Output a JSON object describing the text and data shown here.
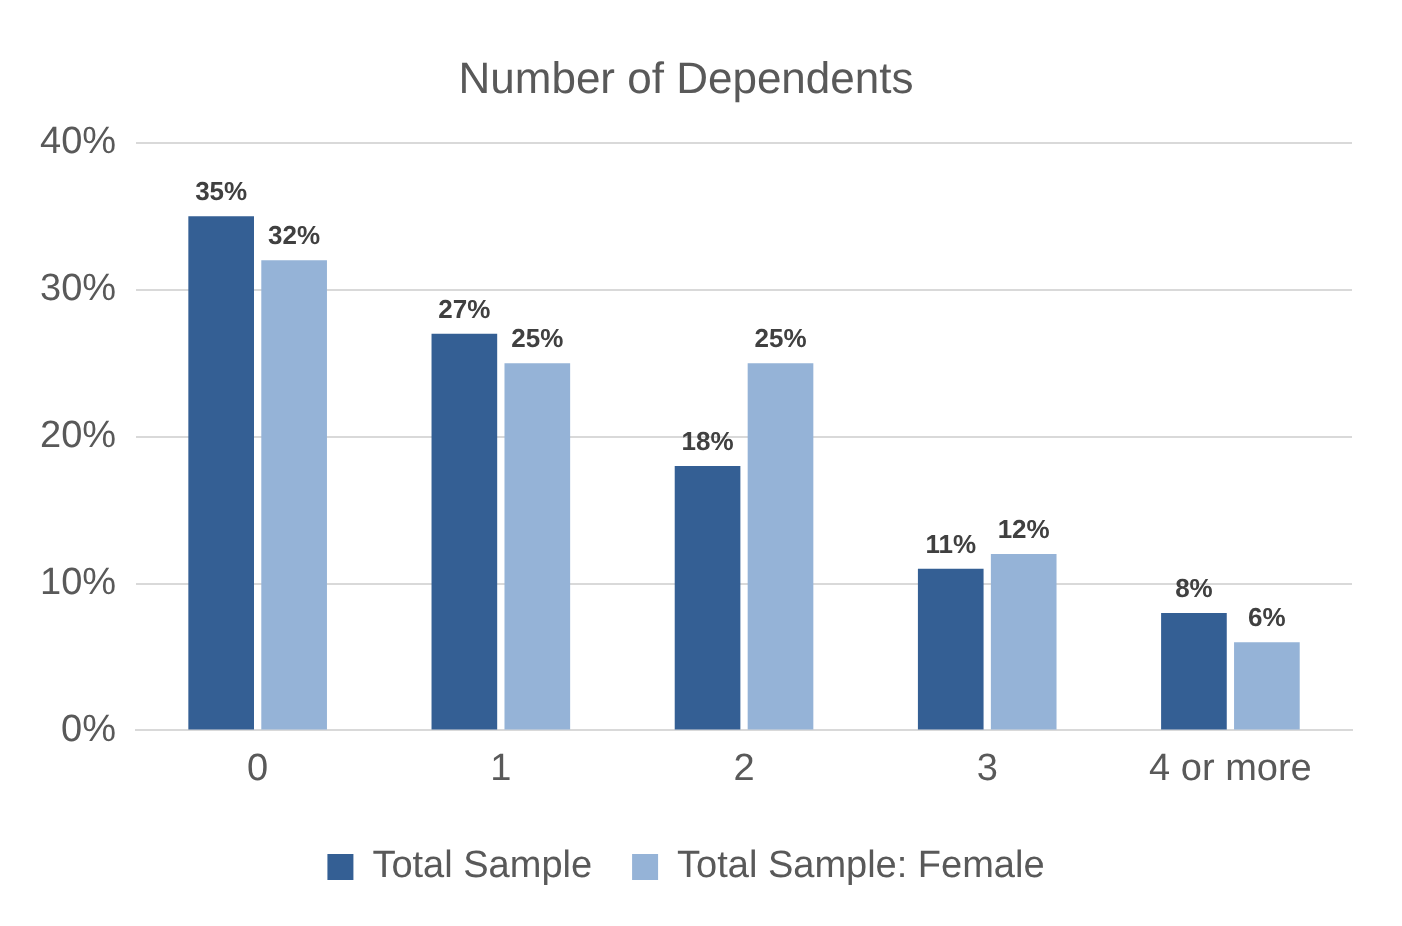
{
  "chart_data": {
    "type": "bar",
    "title": "Number of Dependents",
    "categories": [
      "0",
      "1",
      "2",
      "3",
      "4 or more"
    ],
    "series": [
      {
        "name": "Total Sample",
        "color": "#345f94",
        "values": [
          35,
          27,
          18,
          11,
          8
        ],
        "value_labels": [
          "35%",
          "27%",
          "18%",
          "11%",
          "8%"
        ]
      },
      {
        "name": "Total Sample: Female",
        "color": "#95b3d7",
        "values": [
          32,
          25,
          25,
          12,
          6
        ],
        "value_labels": [
          "32%",
          "25%",
          "25%",
          "12%",
          "6%"
        ]
      }
    ],
    "ylim": [
      0,
      40
    ],
    "yticks": [
      {
        "value": 0,
        "label": "0%"
      },
      {
        "value": 10,
        "label": "10%"
      },
      {
        "value": 20,
        "label": "20%"
      },
      {
        "value": 30,
        "label": "30%"
      },
      {
        "value": 40,
        "label": "40%"
      }
    ],
    "grid": "y",
    "legend": "bottom"
  }
}
